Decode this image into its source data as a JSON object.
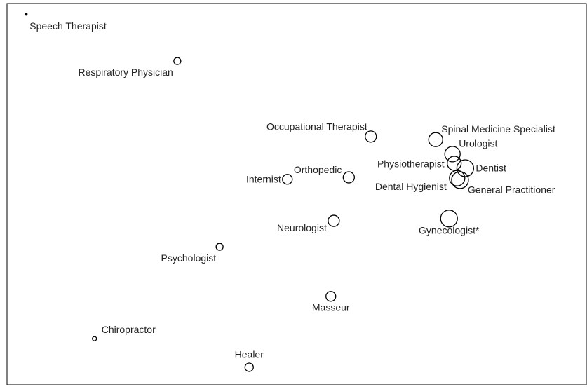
{
  "chart_data": {
    "type": "bubble",
    "labels": [
      "Speech Therapist",
      "Respiratory Physician",
      "Occupational Therapist",
      "Spinal Medicine Specialist",
      "Urologist",
      "Physiotherapist",
      "Dentist",
      "Dental Hygienist",
      "General Practitioner",
      "Orthopedic",
      "Internist",
      "Neurologist",
      "Gynecologist*",
      "Psychologist",
      "Masseur",
      "Chiropractor",
      "Healer"
    ],
    "x": [
      3.3,
      29.4,
      62.8,
      74.0,
      76.9,
      77.2,
      79.1,
      77.7,
      78.2,
      59.0,
      48.4,
      56.4,
      76.3,
      36.7,
      55.9,
      15.1,
      41.8
    ],
    "y": [
      97.2,
      84.9,
      65.1,
      64.3,
      60.5,
      58.1,
      56.8,
      54.2,
      53.7,
      54.4,
      53.9,
      43.0,
      43.6,
      36.2,
      23.2,
      12.1,
      4.6
    ],
    "sizes": [
      1.5,
      5,
      8,
      10,
      11,
      10,
      12,
      11,
      12,
      8,
      7,
      8,
      12,
      5,
      7,
      3,
      6
    ],
    "xlim": [
      0,
      100
    ],
    "ylim": [
      0,
      100
    ],
    "color": "#000000"
  }
}
